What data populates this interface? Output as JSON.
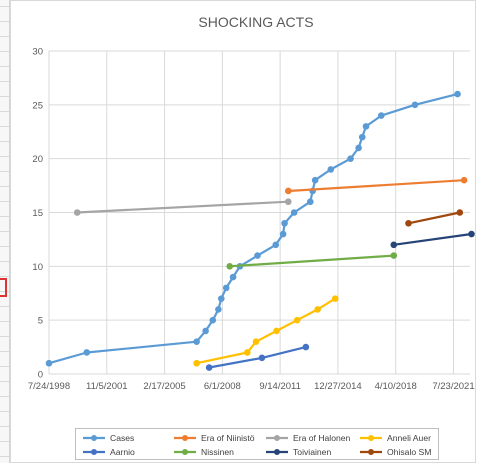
{
  "chart_data": {
    "type": "line",
    "title": "SHOCKING ACTS",
    "xlabel": "",
    "ylabel": "",
    "ylim": [
      0,
      30
    ],
    "yticks": [
      0,
      5,
      10,
      15,
      20,
      25,
      30
    ],
    "xlim": [
      "1998-07-24",
      "2022-07-01"
    ],
    "xticks": [
      "1998-07-24",
      "2001-11-05",
      "2005-02-17",
      "2008-06-01",
      "2011-09-14",
      "2014-12-27",
      "2018-04-10",
      "2021-07-23"
    ],
    "xtick_labels": [
      "7/24/1998",
      "11/5/2001",
      "2/17/2005",
      "6/1/2008",
      "9/14/2011",
      "12/27/2014",
      "4/10/2018",
      "7/23/2021"
    ],
    "grid": true,
    "legend_position": "bottom",
    "series": [
      {
        "name": "Cases",
        "color": "#5b9bd5",
        "points": [
          [
            "1998-07-24",
            1
          ],
          [
            "2000-09-15",
            2
          ],
          [
            "2006-12-15",
            3
          ],
          [
            "2007-06-20",
            4
          ],
          [
            "2007-11-15",
            5
          ],
          [
            "2008-03-10",
            6
          ],
          [
            "2008-05-10",
            7
          ],
          [
            "2008-08-20",
            8
          ],
          [
            "2009-01-10",
            9
          ],
          [
            "2009-06-01",
            10
          ],
          [
            "2010-06-01",
            11
          ],
          [
            "2011-06-15",
            12
          ],
          [
            "2011-11-15",
            13
          ],
          [
            "2011-12-15",
            14
          ],
          [
            "2012-07-01",
            15
          ],
          [
            "2013-06-01",
            16
          ],
          [
            "2013-07-20",
            17
          ],
          [
            "2013-09-10",
            18
          ],
          [
            "2014-08-01",
            19
          ],
          [
            "2015-09-15",
            20
          ],
          [
            "2016-03-01",
            21
          ],
          [
            "2016-05-15",
            22
          ],
          [
            "2016-08-01",
            23
          ],
          [
            "2017-06-15",
            24
          ],
          [
            "2019-05-15",
            25
          ],
          [
            "2021-10-15",
            26
          ]
        ]
      },
      {
        "name": "Era of Niinistö",
        "color": "#ed7d31",
        "points": [
          [
            "2012-03-01",
            17
          ],
          [
            "2022-03-01",
            18
          ]
        ]
      },
      {
        "name": "Era of Halonen",
        "color": "#a5a5a5",
        "points": [
          [
            "2000-03-01",
            15
          ],
          [
            "2012-03-01",
            16
          ]
        ]
      },
      {
        "name": "Anneli Auer",
        "color": "#ffc000",
        "points": [
          [
            "2006-12-15",
            1
          ],
          [
            "2009-11-01",
            2
          ],
          [
            "2010-05-01",
            3
          ],
          [
            "2011-07-01",
            4
          ],
          [
            "2012-09-01",
            5
          ],
          [
            "2013-11-01",
            6
          ],
          [
            "2014-11-01",
            7
          ]
        ]
      },
      {
        "name": "Aarnio",
        "color": "#4472c4",
        "points": [
          [
            "2007-09-01",
            0.6
          ],
          [
            "2010-09-01",
            1.5
          ],
          [
            "2013-03-01",
            2.5
          ]
        ]
      },
      {
        "name": "Nissinen",
        "color": "#70ad47",
        "points": [
          [
            "2008-11-01",
            10
          ],
          [
            "2018-03-01",
            11
          ]
        ]
      },
      {
        "name": "Toiviainen",
        "color": "#264478",
        "points": [
          [
            "2018-03-01",
            12
          ],
          [
            "2022-08-01",
            13
          ]
        ]
      },
      {
        "name": "Ohisalo SM",
        "color": "#9e480e",
        "points": [
          [
            "2019-01-01",
            14
          ],
          [
            "2021-12-01",
            15
          ]
        ]
      }
    ]
  }
}
